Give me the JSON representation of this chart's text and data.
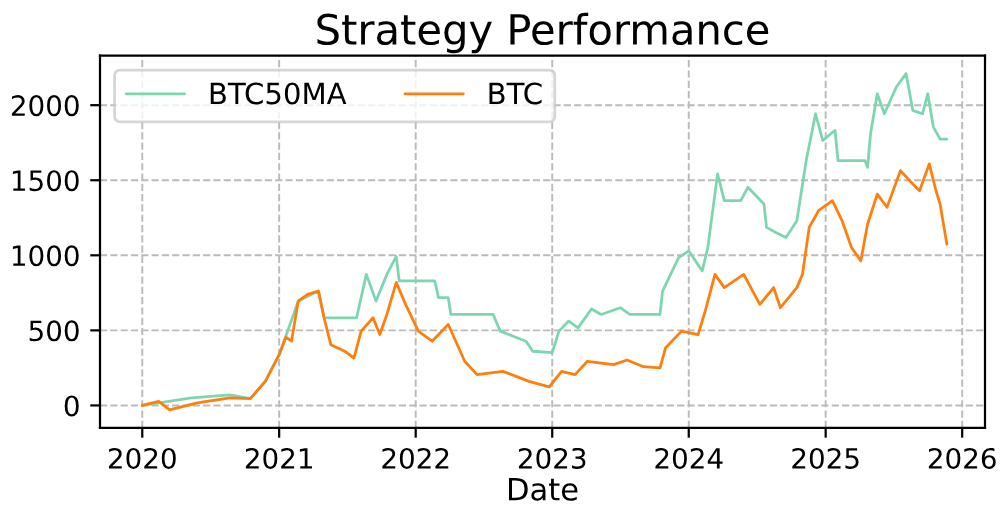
{
  "chart_data": {
    "type": "line",
    "title": "Strategy Performance",
    "xlabel": "Date",
    "xlim": [
      "2019-09-10",
      "2026-03-03"
    ],
    "xticks": [
      {
        "value": "2020-01-01",
        "label": "2020"
      },
      {
        "value": "2021-01-01",
        "label": "2021"
      },
      {
        "value": "2022-01-01",
        "label": "2022"
      },
      {
        "value": "2023-01-01",
        "label": "2023"
      },
      {
        "value": "2024-01-01",
        "label": "2024"
      },
      {
        "value": "2025-01-01",
        "label": "2025"
      },
      {
        "value": "2026-01-01",
        "label": "2026"
      }
    ],
    "ylim": [
      -150,
      2330
    ],
    "yticks": [
      0,
      500,
      1000,
      1500,
      2000
    ],
    "grid": true,
    "legend": "top left",
    "line_style": "solid",
    "marker": "none",
    "series": [
      {
        "name": "BTC50MA",
        "color": "#7ed6b0",
        "x": [
          "2020-01-01",
          "2020-05-12",
          "2020-08-22",
          "2020-10-16",
          "2020-11-25",
          "2021-01-01",
          "2021-02-21",
          "2021-04-16",
          "2021-05-01",
          "2021-07-27",
          "2021-08-22",
          "2021-09-17",
          "2021-10-16",
          "2021-11-10",
          "2021-11-18",
          "2022-02-21",
          "2022-03-03",
          "2022-03-29",
          "2022-04-05",
          "2022-07-27",
          "2022-08-15",
          "2022-10-23",
          "2022-11-10",
          "2023-01-01",
          "2023-01-19",
          "2023-02-14",
          "2023-03-11",
          "2023-04-16",
          "2023-05-12",
          "2023-07-02",
          "2023-07-27",
          "2023-10-16",
          "2023-10-23",
          "2023-12-05",
          "2024-01-01",
          "2024-02-06",
          "2024-02-21",
          "2024-03-18",
          "2024-04-05",
          "2024-05-19",
          "2024-06-07",
          "2024-07-20",
          "2024-07-27",
          "2024-08-22",
          "2024-09-17",
          "2024-10-16",
          "2024-11-10",
          "2024-12-05",
          "2024-12-24",
          "2025-01-26",
          "2025-02-03",
          "2025-04-16",
          "2025-04-23",
          "2025-05-01",
          "2025-05-19",
          "2025-06-07",
          "2025-07-09",
          "2025-08-04",
          "2025-08-22",
          "2025-09-17",
          "2025-10-01",
          "2025-10-16",
          "2025-11-03",
          "2025-11-21"
        ],
        "values": [
          0,
          50,
          71,
          45,
          160,
          338,
          695,
          762,
          584,
          584,
          873,
          695,
          873,
          993,
          829,
          829,
          718,
          718,
          606,
          606,
          495,
          428,
          361,
          352,
          495,
          562,
          517,
          642,
          606,
          651,
          606,
          606,
          762,
          985,
          1030,
          896,
          1052,
          1542,
          1364,
          1364,
          1453,
          1342,
          1186,
          1150,
          1119,
          1230,
          1631,
          1943,
          1765,
          1832,
          1631,
          1631,
          1586,
          1809,
          2076,
          1943,
          2121,
          2210,
          1965,
          1943,
          2076,
          1854,
          1774,
          1774
        ]
      },
      {
        "name": "BTC",
        "color": "#ff7f0e",
        "x": [
          "2020-01-01",
          "2020-02-14",
          "2020-03-14",
          "2020-05-27",
          "2020-08-22",
          "2020-10-16",
          "2020-11-25",
          "2021-01-01",
          "2021-01-19",
          "2021-02-03",
          "2021-02-21",
          "2021-03-18",
          "2021-04-16",
          "2021-05-01",
          "2021-05-19",
          "2021-06-25",
          "2021-07-20",
          "2021-08-08",
          "2021-09-09",
          "2021-09-27",
          "2021-10-16",
          "2021-11-10",
          "2021-12-05",
          "2022-01-08",
          "2022-02-14",
          "2022-03-29",
          "2022-05-12",
          "2022-06-14",
          "2022-08-22",
          "2022-10-31",
          "2022-12-24",
          "2023-01-26",
          "2023-03-03",
          "2023-04-05",
          "2023-06-14",
          "2023-07-20",
          "2023-09-02",
          "2023-10-16",
          "2023-10-31",
          "2023-12-13",
          "2024-01-26",
          "2024-02-14",
          "2024-03-11",
          "2024-04-05",
          "2024-05-27",
          "2024-07-09",
          "2024-08-15",
          "2024-09-02",
          "2024-10-16",
          "2024-10-31",
          "2024-11-18",
          "2024-12-13",
          "2025-01-19",
          "2025-02-14",
          "2025-03-11",
          "2025-04-05",
          "2025-04-23",
          "2025-05-19",
          "2025-06-14",
          "2025-07-20",
          "2025-08-22",
          "2025-09-09",
          "2025-10-05",
          "2025-10-23",
          "2025-11-03",
          "2025-11-21"
        ],
        "values": [
          0,
          27,
          -30,
          17,
          50,
          45,
          160,
          338,
          455,
          428,
          695,
          740,
          762,
          584,
          405,
          361,
          316,
          495,
          584,
          472,
          606,
          820,
          673,
          495,
          428,
          539,
          294,
          205,
          227,
          160,
          124,
          227,
          205,
          294,
          272,
          303,
          258,
          250,
          384,
          495,
          472,
          628,
          873,
          785,
          873,
          673,
          785,
          651,
          785,
          873,
          1186,
          1297,
          1364,
          1230,
          1052,
          963,
          1207,
          1408,
          1320,
          1564,
          1475,
          1430,
          1609,
          1430,
          1341,
          1074
        ]
      }
    ]
  }
}
